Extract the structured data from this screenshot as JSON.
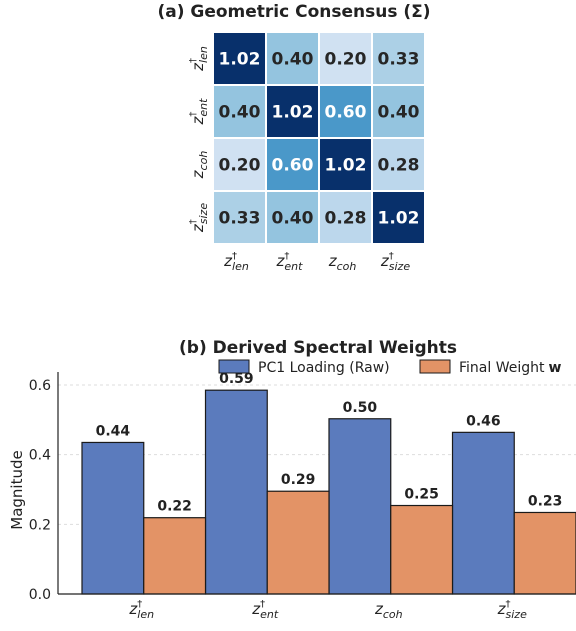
{
  "chart_data": [
    {
      "type": "heatmap",
      "title": "(a) Geometric Consensus (Σ)",
      "row_labels": [
        {
          "base": "z",
          "sub": "len",
          "dagger": true
        },
        {
          "base": "z",
          "sub": "ent",
          "dagger": true
        },
        {
          "base": "z",
          "sub": "coh",
          "dagger": false
        },
        {
          "base": "z",
          "sub": "size",
          "dagger": true
        }
      ],
      "col_labels": [
        {
          "base": "z",
          "sub": "len",
          "dagger": true
        },
        {
          "base": "z",
          "sub": "ent",
          "dagger": true
        },
        {
          "base": "z",
          "sub": "coh",
          "dagger": false
        },
        {
          "base": "z",
          "sub": "size",
          "dagger": true
        }
      ],
      "matrix": [
        [
          1.02,
          0.4,
          0.2,
          0.33
        ],
        [
          0.4,
          1.02,
          0.6,
          0.4
        ],
        [
          0.2,
          0.6,
          1.02,
          0.28
        ],
        [
          0.33,
          0.4,
          0.28,
          1.02
        ]
      ],
      "cell_labels": [
        [
          "1.02",
          "0.40",
          "0.20",
          "0.33"
        ],
        [
          "0.40",
          "1.02",
          "0.60",
          "0.40"
        ],
        [
          "0.20",
          "0.60",
          "1.02",
          "0.28"
        ],
        [
          "0.33",
          "0.40",
          "0.28",
          "1.02"
        ]
      ],
      "colormap": "Blues"
    },
    {
      "type": "bar",
      "title": "(b) Derived Spectral Weights",
      "ylabel": "Magnitude",
      "ylim": [
        0,
        0.62
      ],
      "yticks": [
        0.0,
        0.2,
        0.4,
        0.6
      ],
      "ytick_labels": [
        "0.0",
        "0.2",
        "0.4",
        "0.6"
      ],
      "grid": true,
      "legend_position": "top-right",
      "categories": [
        {
          "base": "z",
          "sub": "len",
          "dagger": true
        },
        {
          "base": "z",
          "sub": "ent",
          "dagger": true
        },
        {
          "base": "z",
          "sub": "coh",
          "dagger": false
        },
        {
          "base": "z",
          "sub": "size",
          "dagger": true
        }
      ],
      "series": [
        {
          "name": "PC1 Loading (Raw)",
          "values": [
            0.435,
            0.585,
            0.503,
            0.464
          ],
          "labels": [
            "0.44",
            "0.59",
            "0.50",
            "0.46"
          ],
          "color": "#5b7bbd"
        },
        {
          "name": "Final Weight",
          "name_bold_suffix": "w",
          "values": [
            0.219,
            0.295,
            0.254,
            0.234
          ],
          "labels": [
            "0.22",
            "0.29",
            "0.25",
            "0.23"
          ],
          "color": "#e39366"
        }
      ]
    }
  ]
}
